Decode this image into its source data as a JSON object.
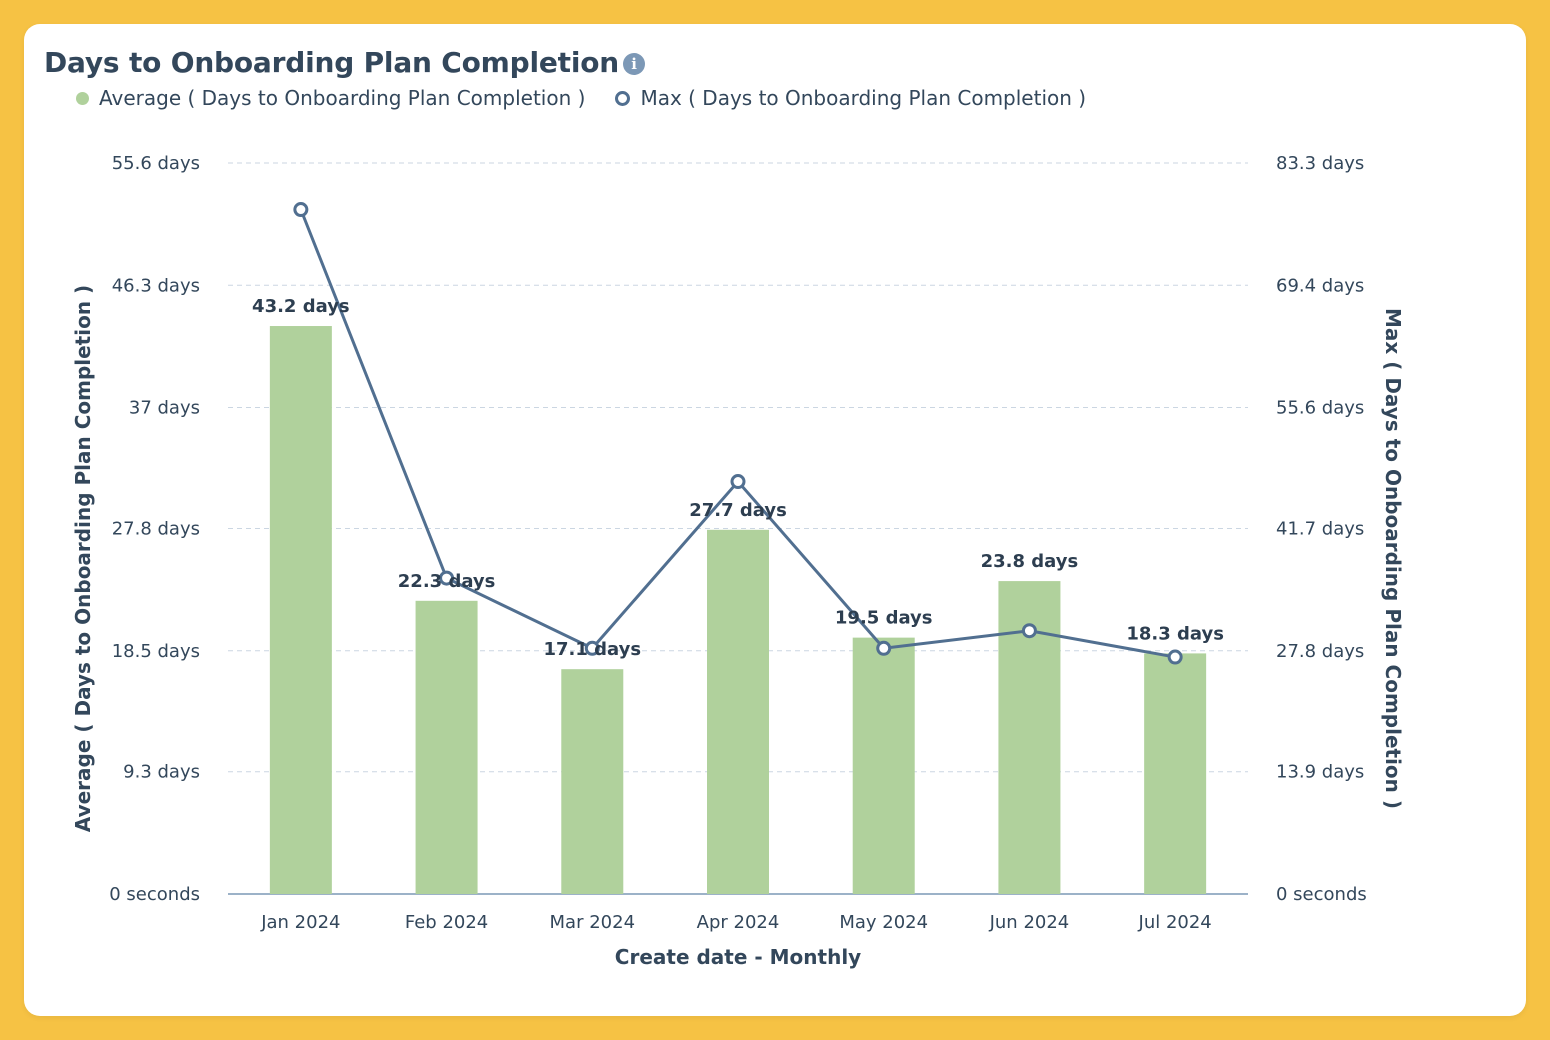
{
  "header": {
    "title": "Days to Onboarding Plan Completion",
    "info_icon": "info-icon"
  },
  "legend": {
    "average_label": "Average ( Days to Onboarding Plan Completion )",
    "max_label": "Max ( Days to Onboarding Plan Completion )"
  },
  "colors": {
    "bar": "#b0d19c",
    "line": "#516f90",
    "grid": "#cbd6e2",
    "text": "#33475b",
    "background": "#f6c244"
  },
  "chart_data": {
    "type": "bar",
    "categories": [
      "Jan 2024",
      "Feb 2024",
      "Mar 2024",
      "Apr 2024",
      "May 2024",
      "Jun 2024",
      "Jul 2024"
    ],
    "series": [
      {
        "name": "Average ( Days to Onboarding Plan Completion )",
        "type": "bar",
        "axis": "left",
        "values": [
          43.2,
          22.3,
          17.1,
          27.7,
          19.5,
          23.8,
          18.3
        ],
        "labels": [
          "43.2 days",
          "22.3 days",
          "17.1 days",
          "27.7 days",
          "19.5 days",
          "23.8 days",
          "18.3 days"
        ]
      },
      {
        "name": "Max ( Days to Onboarding Plan Completion )",
        "type": "line",
        "axis": "right",
        "values": [
          78,
          36,
          28,
          47,
          28,
          30,
          27
        ]
      }
    ],
    "xlabel": "Create date - Monthly",
    "ylabel": "Average ( Days to Onboarding Plan Completion )",
    "y2label": "Max ( Days to Onboarding Plan Completion )",
    "ylim": [
      0,
      55.6
    ],
    "y2lim": [
      0,
      83.3
    ],
    "yticks": [
      0,
      9.3,
      18.5,
      27.8,
      37,
      46.3,
      55.6
    ],
    "ytick_labels": [
      "0 seconds",
      "9.3 days",
      "18.5 days",
      "27.8 days",
      "37 days",
      "46.3 days",
      "55.6 days"
    ],
    "y2ticks": [
      0,
      13.9,
      27.8,
      41.7,
      55.6,
      69.4,
      83.3
    ],
    "y2tick_labels": [
      "0 seconds",
      "13.9 days",
      "27.8 days",
      "41.7 days",
      "55.6 days",
      "69.4 days",
      "83.3 days"
    ],
    "grid": true,
    "legend_position": "top-left"
  }
}
